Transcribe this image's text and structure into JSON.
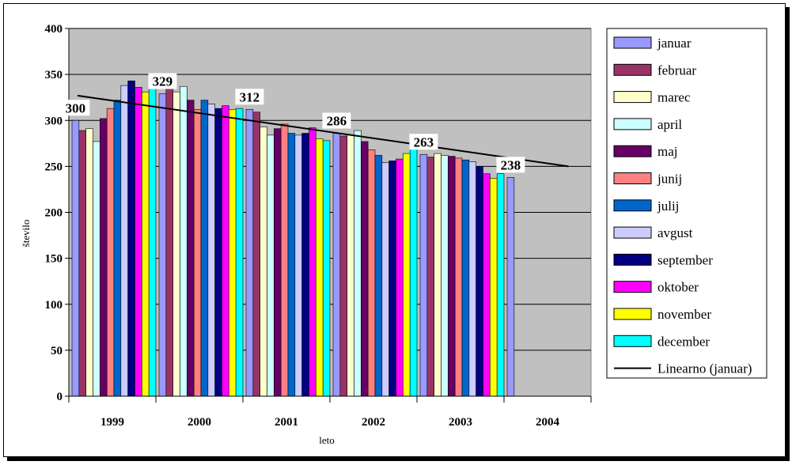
{
  "chart_data": {
    "type": "bar",
    "xlabel": "leto",
    "ylabel": "število",
    "ylim": [
      0,
      400
    ],
    "ytick_step": 50,
    "categories": [
      "1999",
      "2000",
      "2001",
      "2002",
      "2003",
      "2004"
    ],
    "grid": "horizontal",
    "legend_position": "right",
    "series": [
      {
        "name": "januar",
        "color": "#9999ff",
        "values": [
          300,
          329,
          312,
          286,
          263,
          238
        ]
      },
      {
        "name": "februar",
        "color": "#993366",
        "values": [
          289,
          336,
          309,
          283,
          260,
          null
        ]
      },
      {
        "name": "marec",
        "color": "#ffffcc",
        "values": [
          291,
          331,
          293,
          284,
          264,
          null
        ]
      },
      {
        "name": "april",
        "color": "#ccffff",
        "values": [
          277,
          337,
          284,
          289,
          262,
          null
        ]
      },
      {
        "name": "maj",
        "color": "#660066",
        "values": [
          302,
          322,
          291,
          277,
          261,
          null
        ]
      },
      {
        "name": "junij",
        "color": "#ff8080",
        "values": [
          313,
          312,
          296,
          268,
          259,
          null
        ]
      },
      {
        "name": "julij",
        "color": "#0066cc",
        "values": [
          322,
          322,
          286,
          262,
          257,
          null
        ]
      },
      {
        "name": "avgust",
        "color": "#ccccff",
        "values": [
          338,
          318,
          284,
          254,
          255,
          null
        ]
      },
      {
        "name": "september",
        "color": "#000080",
        "values": [
          343,
          313,
          286,
          256,
          250,
          null
        ]
      },
      {
        "name": "oktober",
        "color": "#ff00ff",
        "values": [
          336,
          316,
          292,
          258,
          242,
          null
        ]
      },
      {
        "name": "november",
        "color": "#ffff00",
        "values": [
          331,
          312,
          280,
          264,
          237,
          null
        ]
      },
      {
        "name": "december",
        "color": "#00ffff",
        "values": [
          335,
          313,
          278,
          269,
          242,
          null
        ]
      }
    ],
    "data_labels": [
      {
        "category": "1999",
        "text": "300"
      },
      {
        "category": "2000",
        "text": "329"
      },
      {
        "category": "2001",
        "text": "312"
      },
      {
        "category": "2002",
        "text": "286"
      },
      {
        "category": "2003",
        "text": "263"
      },
      {
        "category": "2004",
        "text": "238"
      }
    ],
    "trendline": {
      "name": "Linearno (januar)",
      "color": "#000000",
      "start_value": 327,
      "end_value": 250
    }
  }
}
